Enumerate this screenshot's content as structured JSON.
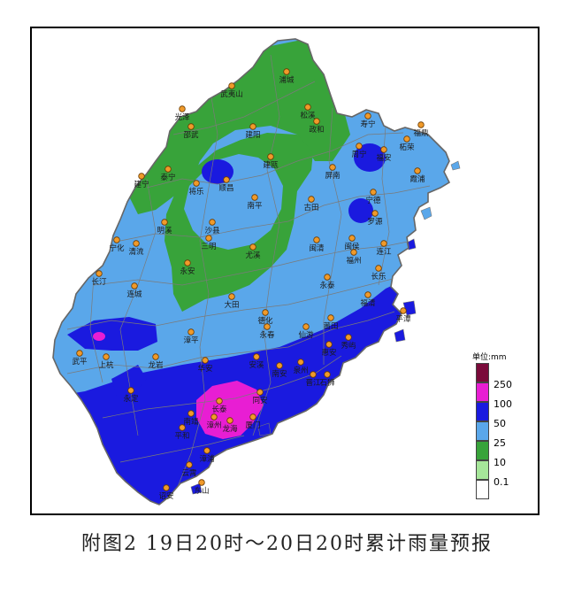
{
  "caption": "附图2 19日20时～20日20时累计雨量预报",
  "legend": {
    "title": "单位:mm",
    "items": [
      {
        "label": "",
        "color": "#7a0a3a"
      },
      {
        "label": "250",
        "color": "#e81ed3"
      },
      {
        "label": "100",
        "color": "#1a1adf"
      },
      {
        "label": "50",
        "color": "#5aa7ea"
      },
      {
        "label": "25",
        "color": "#38a33a"
      },
      {
        "label": "10",
        "color": "#a6e69a"
      },
      {
        "label": "0.1",
        "color": "#ffffff"
      }
    ]
  },
  "cities": [
    {
      "name": "浦城"
    },
    {
      "name": "武夷山"
    },
    {
      "name": "光泽"
    },
    {
      "name": "松溪"
    },
    {
      "name": "政和"
    },
    {
      "name": "邵武"
    },
    {
      "name": "建阳"
    },
    {
      "name": "寿宁"
    },
    {
      "name": "福鼎"
    },
    {
      "name": "周宁"
    },
    {
      "name": "柘荣"
    },
    {
      "name": "福安"
    },
    {
      "name": "霞浦"
    },
    {
      "name": "泰宁"
    },
    {
      "name": "建瓯"
    },
    {
      "name": "屏南"
    },
    {
      "name": "宁德"
    },
    {
      "name": "建宁"
    },
    {
      "name": "将乐"
    },
    {
      "name": "顺昌"
    },
    {
      "name": "南平"
    },
    {
      "name": "古田"
    },
    {
      "name": "罗源"
    },
    {
      "name": "宁化"
    },
    {
      "name": "明溪"
    },
    {
      "name": "沙县"
    },
    {
      "name": "三明"
    },
    {
      "name": "闽清"
    },
    {
      "name": "闽侯"
    },
    {
      "name": "福州"
    },
    {
      "name": "连江"
    },
    {
      "name": "清流"
    },
    {
      "name": "永安"
    },
    {
      "name": "尤溪"
    },
    {
      "name": "长乐"
    },
    {
      "name": "长汀"
    },
    {
      "name": "连城"
    },
    {
      "name": "永泰"
    },
    {
      "name": "大田"
    },
    {
      "name": "福清"
    },
    {
      "name": "平潭"
    },
    {
      "name": "德化"
    },
    {
      "name": "永春"
    },
    {
      "name": "仙游"
    },
    {
      "name": "莆田"
    },
    {
      "name": "漳平"
    },
    {
      "name": "秀屿"
    },
    {
      "name": "武平"
    },
    {
      "name": "上杭"
    },
    {
      "name": "龙岩"
    },
    {
      "name": "华安"
    },
    {
      "name": "安溪"
    },
    {
      "name": "南安"
    },
    {
      "name": "泉州"
    },
    {
      "name": "晋江"
    },
    {
      "name": "石狮"
    },
    {
      "name": "惠安"
    },
    {
      "name": "永定"
    },
    {
      "name": "同安"
    },
    {
      "name": "南靖"
    },
    {
      "name": "长泰"
    },
    {
      "name": "漳州"
    },
    {
      "name": "厦门"
    },
    {
      "name": "平和"
    },
    {
      "name": "龙海"
    },
    {
      "name": "漳浦"
    },
    {
      "name": "云霄"
    },
    {
      "name": "诏安"
    },
    {
      "name": "东山"
    }
  ]
}
